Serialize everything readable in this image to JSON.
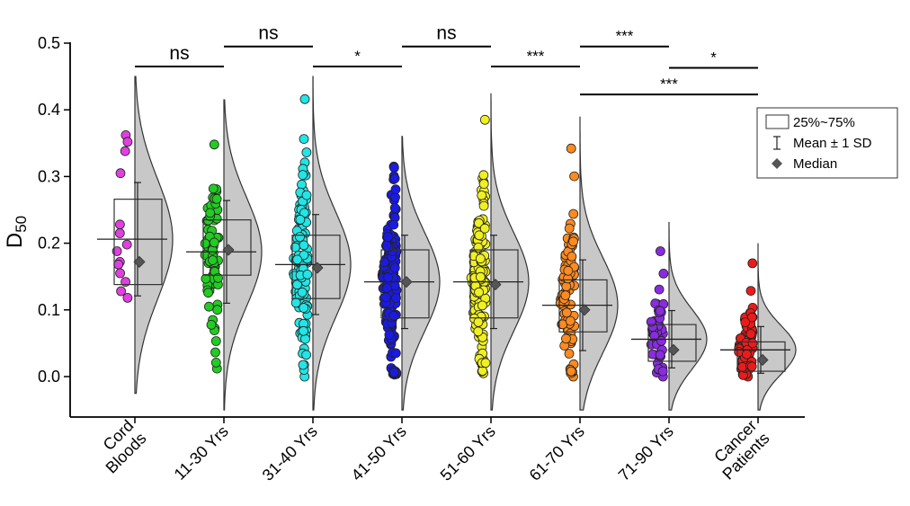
{
  "chart_data": {
    "type": "raincloud",
    "ylabel_main": "D",
    "ylabel_sub": "50",
    "ylim": [
      -0.06,
      0.5
    ],
    "yticks": [
      0.0,
      0.1,
      0.2,
      0.3,
      0.4,
      0.5
    ],
    "ytick_labels": [
      "0.0",
      "0.1",
      "0.2",
      "0.3",
      "0.4",
      "0.5"
    ],
    "categories": [
      {
        "label": [
          "Cord",
          "Bloods"
        ],
        "color": "#e040e0",
        "mean": 0.206,
        "sd": 0.085,
        "median": 0.172,
        "q1": 0.138,
        "q3": 0.266,
        "kde_min": -0.025,
        "kde_max": 0.45,
        "points": [
          0.362,
          0.352,
          0.338,
          0.305,
          0.228,
          0.215,
          0.198,
          0.188,
          0.172,
          0.168,
          0.155,
          0.142,
          0.128,
          0.118
        ]
      },
      {
        "label": [
          "11-30 Yrs"
        ],
        "color": "#22cc22",
        "mean": 0.187,
        "sd": 0.077,
        "median": 0.19,
        "q1": 0.152,
        "q3": 0.235,
        "kde_min": -0.05,
        "kde_max": 0.415,
        "n": 70,
        "lo": 0.012,
        "hi": 0.348
      },
      {
        "label": [
          "31-40 Yrs"
        ],
        "color": "#22e5e5",
        "mean": 0.168,
        "sd": 0.075,
        "median": 0.163,
        "q1": 0.117,
        "q3": 0.212,
        "kde_min": -0.05,
        "kde_max": 0.45,
        "n": 120,
        "lo": 0.0,
        "hi": 0.416
      },
      {
        "label": [
          "41-50 Yrs"
        ],
        "color": "#1a1ae6",
        "mean": 0.142,
        "sd": 0.07,
        "median": 0.142,
        "q1": 0.088,
        "q3": 0.19,
        "kde_min": -0.05,
        "kde_max": 0.36,
        "n": 150,
        "lo": 0.003,
        "hi": 0.315
      },
      {
        "label": [
          "51-60 Yrs"
        ],
        "color": "#f0f020",
        "mean": 0.142,
        "sd": 0.07,
        "median": 0.138,
        "q1": 0.088,
        "q3": 0.19,
        "kde_min": -0.05,
        "kde_max": 0.425,
        "n": 150,
        "lo": 0.005,
        "hi": 0.385
      },
      {
        "label": [
          "61-70 Yrs"
        ],
        "color": "#ff8a1e",
        "mean": 0.107,
        "sd": 0.068,
        "median": 0.1,
        "q1": 0.067,
        "q3": 0.145,
        "kde_min": -0.05,
        "kde_max": 0.39,
        "n": 90,
        "lo": 0.0,
        "hi": 0.342
      },
      {
        "label": [
          "71-90 Yrs"
        ],
        "color": "#8a2be2",
        "mean": 0.056,
        "sd": 0.043,
        "median": 0.04,
        "q1": 0.023,
        "q3": 0.078,
        "kde_min": -0.05,
        "kde_max": 0.232,
        "n": 45,
        "lo": 0.0,
        "hi": 0.188
      },
      {
        "label": [
          "Cancer",
          "Patients"
        ],
        "color": "#ee1a1a",
        "mean": 0.04,
        "sd": 0.035,
        "median": 0.025,
        "q1": 0.008,
        "q3": 0.052,
        "kde_min": -0.05,
        "kde_max": 0.2,
        "n": 80,
        "lo": 0.0,
        "hi": 0.17
      }
    ],
    "significance": [
      {
        "from": 0,
        "to": 1,
        "label": "ns",
        "y": 0.465
      },
      {
        "from": 1,
        "to": 2,
        "label": "ns",
        "y": 0.495
      },
      {
        "from": 2,
        "to": 3,
        "label": "*",
        "y": 0.465
      },
      {
        "from": 3,
        "to": 4,
        "label": "ns",
        "y": 0.495
      },
      {
        "from": 4,
        "to": 5,
        "label": "***",
        "y": 0.465
      },
      {
        "from": 5,
        "to": 6,
        "label": "***",
        "y": 0.495
      },
      {
        "from": 6,
        "to": 7,
        "label": "*",
        "y": 0.463
      },
      {
        "from": 5,
        "to": 7,
        "label": "***",
        "y": 0.423
      }
    ],
    "legend": {
      "position": "top-right",
      "items": [
        {
          "kind": "box",
          "label": "25%~75%"
        },
        {
          "kind": "errorbar",
          "label": "Mean ± 1 SD"
        },
        {
          "kind": "diamond",
          "label": "Median"
        }
      ]
    }
  }
}
